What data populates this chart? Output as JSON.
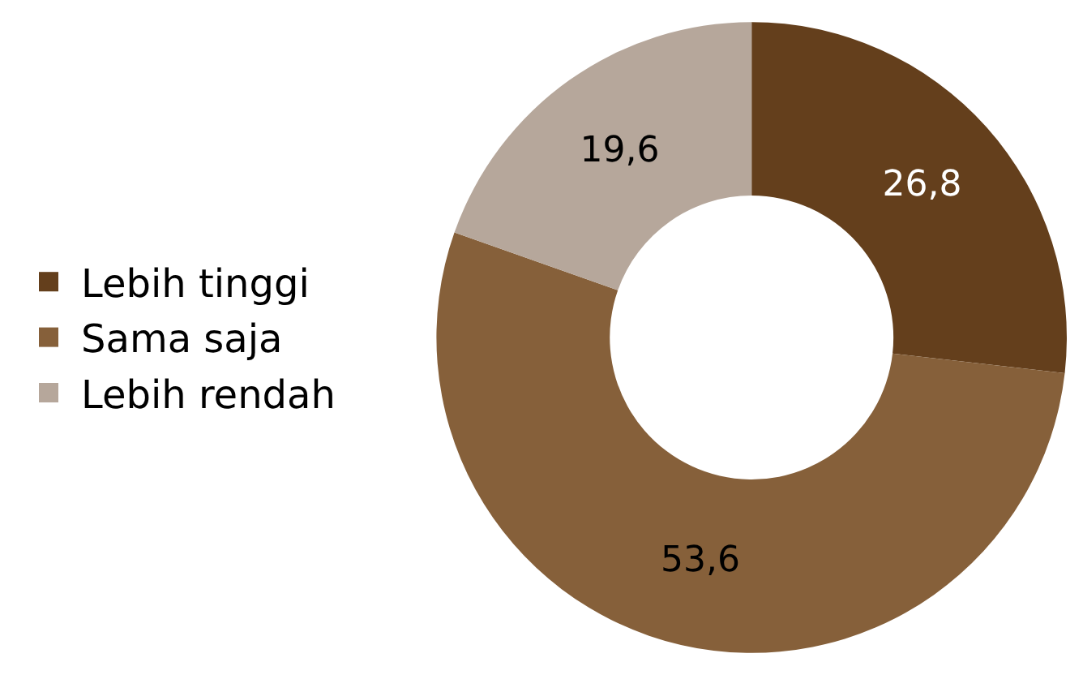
{
  "chart_data": {
    "type": "donut",
    "categories": [
      "Lebih tinggi",
      "Sama saja",
      "Lebih rendah"
    ],
    "values": [
      26.8,
      53.6,
      19.6
    ],
    "value_labels": [
      "26,8",
      "53,6",
      "19,6"
    ],
    "colors": [
      "#643f1c",
      "#86603a",
      "#b6a79b"
    ],
    "legend": "left"
  }
}
